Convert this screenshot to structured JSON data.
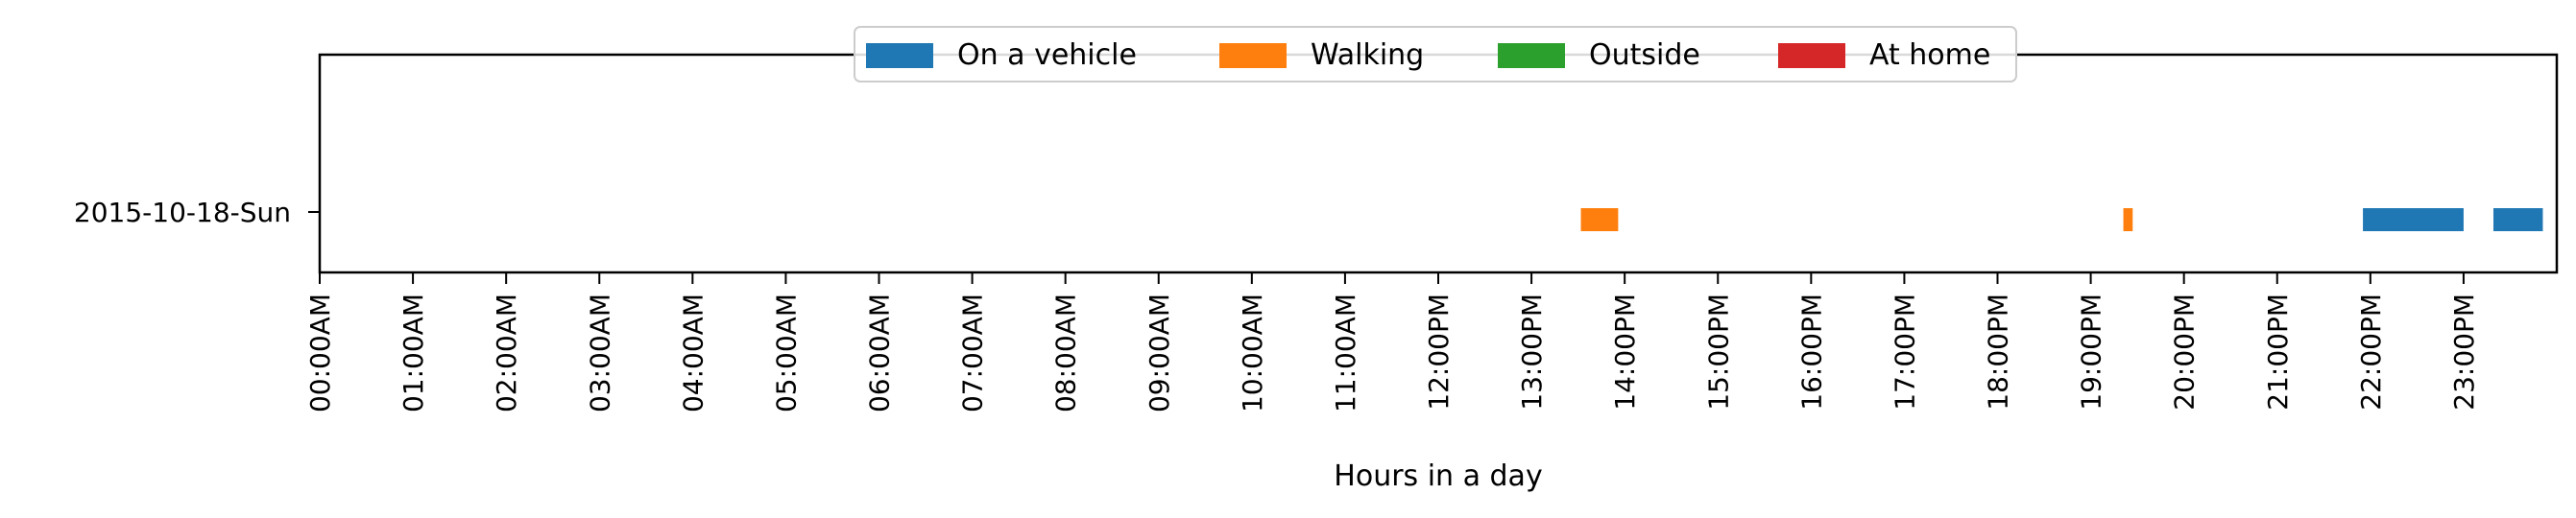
{
  "chart_data": {
    "type": "bar",
    "orientation": "horizontal-timeline",
    "title": "",
    "xlabel": "Hours in a day",
    "ylabel": "",
    "xlim": [
      0,
      24
    ],
    "x_ticks": [
      0,
      1,
      2,
      3,
      4,
      5,
      6,
      7,
      8,
      9,
      10,
      11,
      12,
      13,
      14,
      15,
      16,
      17,
      18,
      19,
      20,
      21,
      22,
      23
    ],
    "x_tick_labels": [
      "00:00AM",
      "01:00AM",
      "02:00AM",
      "03:00AM",
      "04:00AM",
      "05:00AM",
      "06:00AM",
      "07:00AM",
      "08:00AM",
      "09:00AM",
      "10:00AM",
      "11:00AM",
      "12:00PM",
      "13:00PM",
      "14:00PM",
      "15:00PM",
      "16:00PM",
      "17:00PM",
      "18:00PM",
      "19:00PM",
      "20:00PM",
      "21:00PM",
      "22:00PM",
      "23:00PM"
    ],
    "categories": [
      "2015-10-18-Sun"
    ],
    "grid": false,
    "legend_position": "top-center",
    "series": [
      {
        "name": "On a vehicle",
        "color": "#1f77b4",
        "segments": [
          {
            "start": 21.92,
            "end": 23.0
          },
          {
            "start": 23.32,
            "end": 23.85
          }
        ]
      },
      {
        "name": "Walking",
        "color": "#ff7f0e",
        "segments": [
          {
            "start": 13.53,
            "end": 13.93
          },
          {
            "start": 19.35,
            "end": 19.45
          }
        ]
      },
      {
        "name": "Outside",
        "color": "#2ca02c",
        "segments": []
      },
      {
        "name": "At home",
        "color": "#d62728",
        "segments": []
      }
    ]
  }
}
